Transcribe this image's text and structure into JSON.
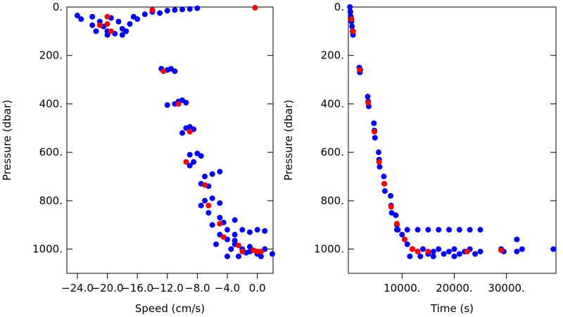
{
  "chart_data": [
    {
      "type": "scatter",
      "xlabel": "Speed (cm/s)",
      "ylabel": "Pressure (dbar)",
      "xlim": [
        -25.4,
        2.1
      ],
      "ylim": [
        1100,
        0
      ],
      "xticks": [
        {
          "value": -24,
          "label": "−24.0"
        },
        {
          "value": -20,
          "label": "−20.0"
        },
        {
          "value": -16,
          "label": "−16.0"
        },
        {
          "value": -12,
          "label": "−12.0"
        },
        {
          "value": -8,
          "label": "−8.0"
        },
        {
          "value": -4,
          "label": "−4.0"
        },
        {
          "value": 0,
          "label": "0.0"
        }
      ],
      "yticks": [
        {
          "value": 0,
          "label": "0."
        },
        {
          "value": 200,
          "label": "200."
        },
        {
          "value": 400,
          "label": "400."
        },
        {
          "value": 600,
          "label": "600."
        },
        {
          "value": 800,
          "label": "800."
        },
        {
          "value": 1000,
          "label": "1000."
        }
      ],
      "series": [
        {
          "color": "#0000ff",
          "x": [
            -24,
            -23.5,
            -22,
            -21,
            -20.5,
            -20,
            -19,
            -18,
            -17,
            -16,
            -15,
            -14,
            -12,
            -10,
            -8,
            -22,
            -19.5,
            -18.5,
            -17.5,
            -16.5,
            -21.5,
            -20,
            -18,
            -13,
            -11,
            -9,
            -12.8,
            -12,
            -11.5,
            -11,
            -10.5,
            -10,
            -9.5,
            -11,
            -12,
            -9.5,
            -9,
            -8.5,
            -10,
            -9,
            -8,
            -7.5,
            -8.5,
            -9,
            -7,
            -6,
            -5,
            -7.5,
            -6.5,
            -7,
            -6,
            -5,
            -7.5,
            -6.5,
            -5,
            -4.5,
            -6,
            -3,
            -4,
            -3,
            -2,
            -1,
            0,
            1,
            -5,
            -4,
            -3,
            -2,
            -1,
            0,
            1,
            -2.5,
            -4,
            -5.5,
            -3.5,
            -1.5,
            2,
            0.5,
            -3,
            -1
          ],
          "values": [
            35,
            50,
            40,
            60,
            80,
            100,
            110,
            90,
            70,
            50,
            30,
            20,
            15,
            10,
            5,
            75,
            45,
            60,
            100,
            40,
            100,
            115,
            115,
            25,
            12,
            8,
            255,
            260,
            255,
            265,
            390,
            385,
            395,
            400,
            405,
            500,
            495,
            505,
            520,
            610,
            605,
            615,
            640,
            655,
            700,
            690,
            680,
            730,
            740,
            800,
            790,
            810,
            820,
            850,
            870,
            890,
            900,
            880,
            920,
            940,
            920,
            930,
            920,
            925,
            940,
            960,
            980,
            1000,
            1010,
            1020,
            1000,
            1030,
            1030,
            980,
            1000,
            1015,
            1020,
            1030,
            965,
            990
          ]
        },
        {
          "color": "#ff0000",
          "x": [
            -20,
            -20,
            -19.5,
            -21,
            -14,
            -0.3,
            -12.5,
            -10.5,
            -9,
            -9.5,
            -7,
            -6.5,
            -5,
            -4.5,
            -2.5,
            -2,
            0,
            -0.5,
            0.5
          ],
          "values": [
            40,
            70,
            100,
            75,
            12,
            3,
            265,
            400,
            515,
            640,
            735,
            820,
            895,
            950,
            985,
            1010,
            1010,
            1005,
            1010
          ]
        }
      ]
    },
    {
      "type": "scatter",
      "xlabel": "Time (s)",
      "ylabel": "Pressure (dbar)",
      "xlim": [
        -300,
        39500
      ],
      "ylim": [
        1100,
        0
      ],
      "xticks": [
        {
          "value": 10000,
          "label": "10000."
        },
        {
          "value": 20000,
          "label": "20000."
        },
        {
          "value": 30000,
          "label": "30000."
        }
      ],
      "yticks": [
        {
          "value": 0,
          "label": "0."
        },
        {
          "value": 200,
          "label": "200."
        },
        {
          "value": 400,
          "label": "400."
        },
        {
          "value": 600,
          "label": "600."
        },
        {
          "value": 800,
          "label": "800."
        },
        {
          "value": 1000,
          "label": "1000."
        }
      ],
      "series": [
        {
          "color": "#0000ff",
          "x": [
            0,
            100,
            200,
            300,
            400,
            500,
            600,
            1800,
            1900,
            2000,
            3400,
            3500,
            3600,
            4600,
            4700,
            4800,
            5500,
            5600,
            5700,
            6500,
            6600,
            6700,
            7800,
            7900,
            8000,
            8800,
            9000,
            9200,
            10000,
            10500,
            11000,
            12000,
            11500,
            9000,
            11000,
            13000,
            15000,
            17000,
            19000,
            21000,
            23000,
            25000,
            13000,
            14000,
            15000,
            16000,
            17000,
            18000,
            19000,
            20000,
            21000,
            22000,
            23000,
            24000,
            25000,
            13500,
            16000,
            20000,
            29000,
            29500,
            32000,
            32000,
            33000,
            39000
          ],
          "values": [
            0,
            20,
            40,
            60,
            80,
            100,
            115,
            250,
            270,
            260,
            370,
            390,
            410,
            480,
            510,
            540,
            600,
            630,
            660,
            700,
            730,
            760,
            780,
            820,
            850,
            860,
            900,
            920,
            940,
            960,
            980,
            1000,
            1030,
            920,
            920,
            920,
            920,
            920,
            920,
            920,
            920,
            920,
            1010,
            1000,
            1020,
            1010,
            1000,
            1020,
            1010,
            1000,
            1020,
            1010,
            1000,
            1020,
            1010,
            1030,
            1030,
            1030,
            1000,
            1010,
            960,
            1010,
            1000,
            1000
          ]
        },
        {
          "color": "#ff0000",
          "x": [
            300,
            600,
            1900,
            3500,
            4700,
            5600,
            6600,
            7900,
            9000,
            10500,
            12000,
            13000,
            15000,
            22500,
            29000
          ],
          "values": [
            50,
            100,
            260,
            395,
            515,
            640,
            730,
            825,
            895,
            960,
            1000,
            1010,
            1010,
            1010,
            1005
          ]
        }
      ]
    }
  ]
}
